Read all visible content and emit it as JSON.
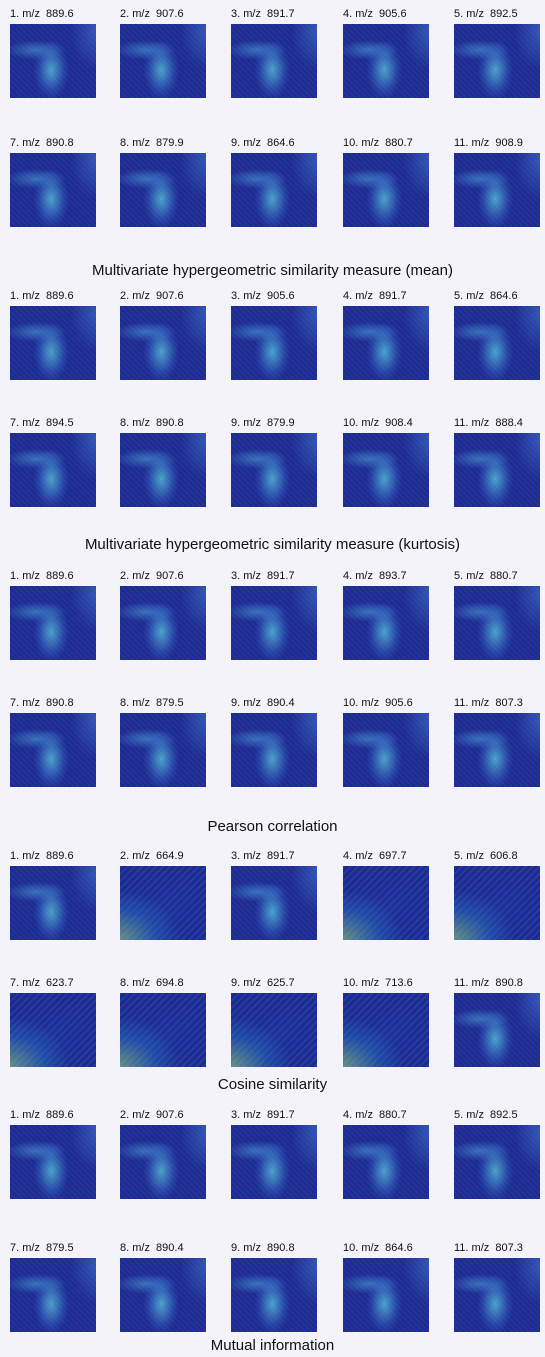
{
  "panels": [
    {
      "images": [
        {
          "label": "1. m/z  889.6"
        },
        {
          "label": "2. m/z  907.6"
        },
        {
          "label": "3. m/z  891.7"
        },
        {
          "label": "4. m/z  905.6"
        },
        {
          "label": "5. m/z  892.5"
        },
        {
          "label": "7. m/z  890.8"
        },
        {
          "label": "8. m/z  879.9"
        },
        {
          "label": "9. m/z  864.6"
        },
        {
          "label": "10. m/z  880.7"
        },
        {
          "label": "11. m/z  908.9"
        }
      ],
      "caption": "Multivariate hypergeometric similarity measure (mean)"
    },
    {
      "images": [
        {
          "label": "1. m/z  889.6"
        },
        {
          "label": "2. m/z  907.6"
        },
        {
          "label": "3. m/z  905.6"
        },
        {
          "label": "4. m/z  891.7"
        },
        {
          "label": "5. m/z  864.6"
        },
        {
          "label": "7. m/z  894.5"
        },
        {
          "label": "8. m/z  890.8"
        },
        {
          "label": "9. m/z  879.9"
        },
        {
          "label": "10. m/z  908.4"
        },
        {
          "label": "11. m/z  888.4"
        }
      ],
      "caption": "Multivariate hypergeometric similarity measure (kurtosis)"
    },
    {
      "images": [
        {
          "label": "1. m/z  889.6"
        },
        {
          "label": "2. m/z  907.6"
        },
        {
          "label": "3. m/z  891.7"
        },
        {
          "label": "4. m/z  893.7"
        },
        {
          "label": "5. m/z  880.7"
        },
        {
          "label": "7. m/z  890.8"
        },
        {
          "label": "8. m/z  879.5"
        },
        {
          "label": "9. m/z  890.4"
        },
        {
          "label": "10. m/z  905.6"
        },
        {
          "label": "11. m/z  807.3"
        }
      ],
      "caption": "Pearson correlation"
    },
    {
      "images": [
        {
          "label": "1. m/z  889.6"
        },
        {
          "label": "2. m/z  664.9"
        },
        {
          "label": "3. m/z  891.7"
        },
        {
          "label": "4. m/z  697.7"
        },
        {
          "label": "5. m/z  606.8"
        },
        {
          "label": "7. m/z  623.7"
        },
        {
          "label": "8. m/z  694.8"
        },
        {
          "label": "9. m/z  625.7"
        },
        {
          "label": "10. m/z  713.6"
        },
        {
          "label": "11. m/z  890.8"
        }
      ],
      "caption": "Cosine similarity"
    },
    {
      "images": [
        {
          "label": "1. m/z  889.6"
        },
        {
          "label": "2. m/z  907.6"
        },
        {
          "label": "3. m/z  891.7"
        },
        {
          "label": "4. m/z  880.7"
        },
        {
          "label": "5. m/z  892.5"
        },
        {
          "label": "7. m/z  879.5"
        },
        {
          "label": "8. m/z  890.4"
        },
        {
          "label": "9. m/z  890.8"
        },
        {
          "label": "10. m/z  864.6"
        },
        {
          "label": "11. m/z  807.3"
        }
      ],
      "caption": "Mutual information"
    }
  ]
}
